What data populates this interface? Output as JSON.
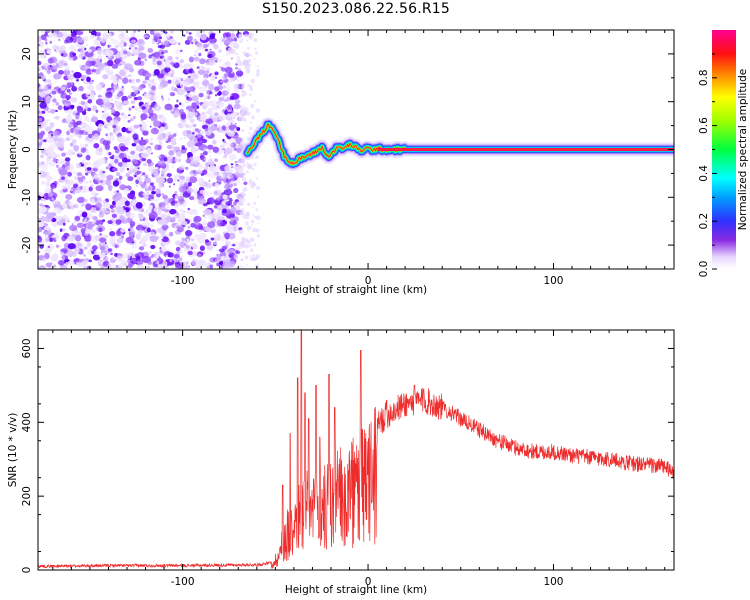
{
  "title": "S150.2023.086.22.56.R15",
  "chart_data": [
    {
      "type": "heatmap",
      "xlabel": "Height of straight line (km)",
      "ylabel": "Frequency (Hz)",
      "xlim": [
        -178,
        165
      ],
      "ylim": [
        -25,
        25
      ],
      "x_ticks": [
        -100,
        0,
        100
      ],
      "x_tick_labels": [
        "-100",
        "0",
        "100"
      ],
      "y_ticks": [
        -20,
        -10,
        0,
        10,
        20
      ],
      "y_tick_labels": [
        "-20",
        "-10",
        "0",
        "10",
        "20"
      ],
      "grid": false,
      "colorbar": {
        "label": "Normalized spectral amplitude",
        "range": [
          0,
          1
        ],
        "ticks": [
          0.0,
          0.2,
          0.4,
          0.6,
          0.8
        ],
        "tick_labels": [
          "0.0",
          "0.2",
          "0.4",
          "0.6",
          "0.8"
        ],
        "colormap": "rainbow"
      },
      "noise_region_x": [
        -178,
        -65
      ],
      "signal_track": {
        "x": [
          -65,
          -60,
          -57,
          -54,
          -52,
          -50,
          -48,
          -45,
          -42,
          -40,
          -37,
          -34,
          -31,
          -28,
          -25,
          -22,
          -19,
          -16,
          -13,
          -10,
          -7,
          -4,
          -1,
          2,
          5,
          10,
          20,
          40,
          60,
          100,
          165
        ],
        "y": [
          -0.5,
          2,
          3.5,
          5,
          4.5,
          3.5,
          1.5,
          -1.5,
          -2.5,
          -3,
          -2,
          -1.5,
          -1,
          -0.5,
          0.5,
          -1.5,
          -0.5,
          0.5,
          0.2,
          1,
          0.5,
          -0.3,
          0.3,
          0,
          0.1,
          0,
          0,
          0,
          0,
          0,
          0
        ]
      }
    },
    {
      "type": "line",
      "xlabel": "Height of straight line (km)",
      "ylabel": "SNR (10 * v/v)",
      "xlim": [
        -178,
        165
      ],
      "ylim": [
        0,
        650
      ],
      "x_ticks": [
        -100,
        0,
        100
      ],
      "x_tick_labels": [
        "-100",
        "0",
        "100"
      ],
      "y_ticks": [
        0,
        200,
        400,
        600
      ],
      "y_tick_labels": [
        "0",
        "200",
        "400",
        "600"
      ],
      "grid": false,
      "line_color": "#ee2c2c",
      "envelope": {
        "x": [
          -178,
          -140,
          -100,
          -60,
          -52,
          -48,
          -45,
          -40,
          -35,
          -30,
          -25,
          -20,
          -15,
          -10,
          -5,
          0,
          10,
          20,
          30,
          40,
          50,
          60,
          70,
          80,
          90,
          100,
          110,
          120,
          130,
          140,
          150,
          160,
          165
        ],
        "y": [
          10,
          12,
          12,
          14,
          20,
          60,
          130,
          200,
          230,
          240,
          250,
          270,
          290,
          310,
          330,
          360,
          420,
          450,
          460,
          440,
          410,
          380,
          350,
          330,
          320,
          320,
          310,
          305,
          300,
          290,
          285,
          280,
          260
        ]
      },
      "spikes": [
        {
          "x": -46,
          "y": 230
        },
        {
          "x": -42,
          "y": 370
        },
        {
          "x": -38,
          "y": 520
        },
        {
          "x": -36,
          "y": 650
        },
        {
          "x": -34,
          "y": 480
        },
        {
          "x": -32,
          "y": 410
        },
        {
          "x": -28,
          "y": 500
        },
        {
          "x": -26,
          "y": 360
        },
        {
          "x": -21,
          "y": 530
        },
        {
          "x": -18,
          "y": 440
        },
        {
          "x": -4,
          "y": 595
        },
        {
          "x": 10,
          "y": 460
        },
        {
          "x": 25,
          "y": 500
        },
        {
          "x": 30,
          "y": 490
        }
      ]
    }
  ]
}
